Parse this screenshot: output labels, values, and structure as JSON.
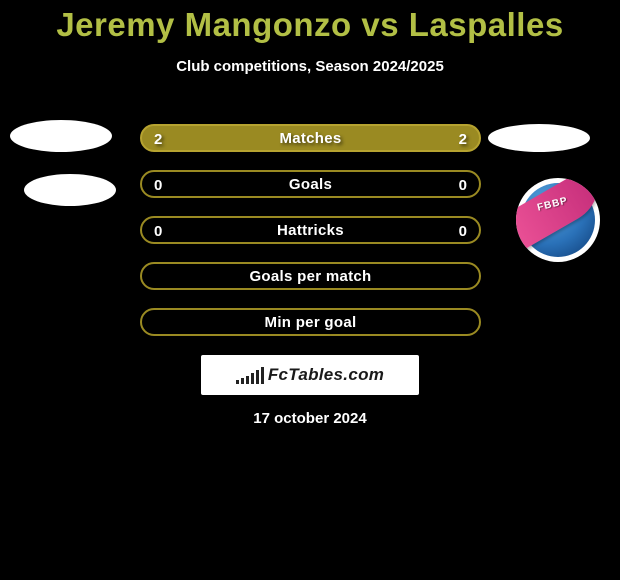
{
  "title_color": "#b2bf45",
  "title_parts": {
    "player1": "Jeremy Mangonzo",
    "vs": " vs ",
    "player2": "Laspalles"
  },
  "subtitle": "Club competitions, Season 2024/2025",
  "row_fill_color": "#9a8a22",
  "row_border_color": "#b6a330",
  "rows": [
    {
      "label": "Matches",
      "left": "2",
      "right": "2",
      "filled": true
    },
    {
      "label": "Goals",
      "left": "0",
      "right": "0",
      "filled": false
    },
    {
      "label": "Hattricks",
      "left": "0",
      "right": "0",
      "filled": false
    },
    {
      "label": "Goals per match",
      "left": "",
      "right": "",
      "filled": false
    },
    {
      "label": "Min per goal",
      "left": "",
      "right": "",
      "filled": false
    }
  ],
  "brand": "FcTables.com",
  "brand_bar_heights": [
    4,
    6,
    8,
    11,
    14,
    17
  ],
  "date": "17 october 2024",
  "right_logo_text": "FBBP",
  "colors": {
    "background": "#000000",
    "text": "#ffffff",
    "brand_box_bg": "#ffffff",
    "brand_text": "#1a1a1a",
    "logo_blue_light": "#5aa7e0",
    "logo_blue_dark": "#0d3a73",
    "logo_pink": "#f0569a"
  }
}
